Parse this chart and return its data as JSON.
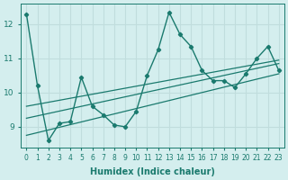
{
  "xlabel": "Humidex (Indice chaleur)",
  "ylabel": "",
  "bg_color": "#d4eeee",
  "line_color": "#1a7a6e",
  "grid_color": "#c0dddd",
  "xlim": [
    -0.5,
    23.5
  ],
  "ylim": [
    8.4,
    12.6
  ],
  "yticks": [
    9,
    10,
    11,
    12
  ],
  "xticks": [
    0,
    1,
    2,
    3,
    4,
    5,
    6,
    7,
    8,
    9,
    10,
    11,
    12,
    13,
    14,
    15,
    16,
    17,
    18,
    19,
    20,
    21,
    22,
    23
  ],
  "main_curve_x": [
    0,
    1,
    2,
    3,
    4,
    5,
    6,
    7,
    8,
    9,
    10,
    11,
    12,
    13,
    14,
    15,
    16,
    17,
    18,
    19,
    20,
    21,
    22,
    23
  ],
  "main_curve_y": [
    12.3,
    10.2,
    8.6,
    9.1,
    9.15,
    10.45,
    9.6,
    9.35,
    9.05,
    9.0,
    9.45,
    10.5,
    11.25,
    12.35,
    11.7,
    11.35,
    10.65,
    10.35,
    10.35,
    10.15,
    10.55,
    11.0,
    11.35,
    10.65
  ],
  "line2_x": [
    0,
    23
  ],
  "line2_y": [
    8.75,
    10.55
  ],
  "line3_x": [
    0,
    23
  ],
  "line3_y": [
    9.25,
    10.85
  ],
  "line4_x": [
    0,
    23
  ],
  "line4_y": [
    9.6,
    10.95
  ]
}
